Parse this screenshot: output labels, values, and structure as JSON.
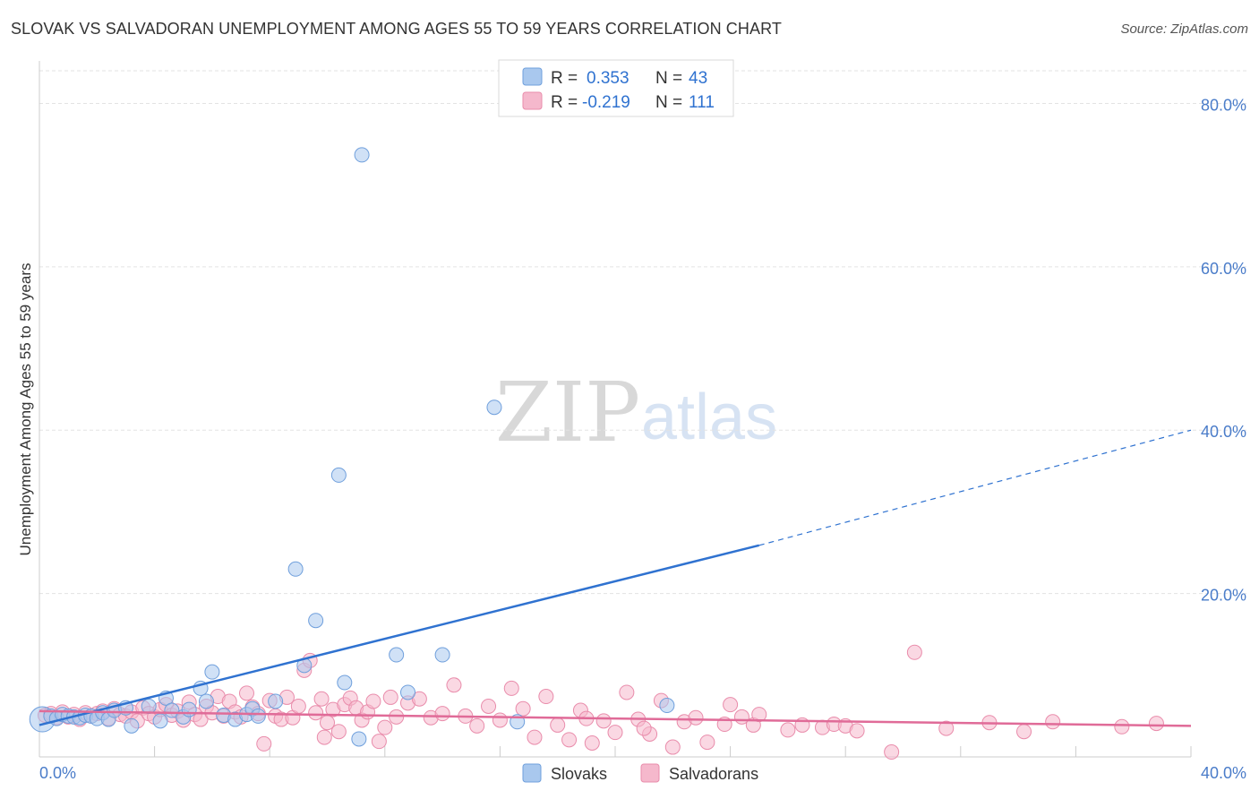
{
  "title": "SLOVAK VS SALVADORAN UNEMPLOYMENT AMONG AGES 55 TO 59 YEARS CORRELATION CHART",
  "source": "Source: ZipAtlas.com",
  "watermark": {
    "zip": "ZIP",
    "atlas": "atlas"
  },
  "colors": {
    "slovak_fill": "#a9c8ee",
    "slovak_stroke": "#6f9fdc",
    "slovak_line": "#2f72d0",
    "salvadoran_fill": "#f5b8cc",
    "salvadoran_stroke": "#e98cab",
    "salvadoran_line": "#e06b98",
    "axis_label": "#4a7cc9",
    "grid": "#e3e3e3"
  },
  "legend": {
    "slovak": {
      "r_label": "R =",
      "r_value": "0.353",
      "n_label": "N =",
      "n_value": "43"
    },
    "salvadoran": {
      "r_label": "R =",
      "r_value": "-0.219",
      "n_label": "N =",
      "n_value": "111"
    }
  },
  "bottom_legend": [
    "Slovaks",
    "Salvadorans"
  ],
  "chart_data": {
    "type": "scatter",
    "title": "SLOVAK VS SALVADORAN UNEMPLOYMENT AMONG AGES 55 TO 59 YEARS CORRELATION CHART",
    "xlabel": "",
    "ylabel": "Unemployment Among Ages 55 to 59 years",
    "xlim": [
      0,
      40
    ],
    "ylim": [
      0,
      84
    ],
    "x_tick_labels": [
      "0.0%",
      "40.0%"
    ],
    "y_ticks": [
      20,
      40,
      60,
      80
    ],
    "y_tick_labels": [
      "20.0%",
      "40.0%",
      "60.0%",
      "80.0%"
    ],
    "grid": true,
    "series": [
      {
        "name": "Slovaks",
        "points": [
          [
            0.1,
            4.6
          ],
          [
            0.4,
            5.0
          ],
          [
            0.6,
            4.7
          ],
          [
            0.8,
            5.2
          ],
          [
            1.0,
            5.0
          ],
          [
            1.2,
            4.9
          ],
          [
            1.4,
            4.8
          ],
          [
            1.6,
            5.1
          ],
          [
            1.8,
            5.0
          ],
          [
            2.0,
            4.7
          ],
          [
            2.2,
            5.4
          ],
          [
            2.4,
            4.6
          ],
          [
            2.6,
            5.7
          ],
          [
            3.0,
            6.0
          ],
          [
            3.2,
            3.8
          ],
          [
            3.8,
            6.2
          ],
          [
            4.2,
            4.4
          ],
          [
            4.4,
            7.2
          ],
          [
            4.6,
            5.7
          ],
          [
            5.0,
            4.9
          ],
          [
            5.2,
            5.8
          ],
          [
            5.6,
            8.4
          ],
          [
            5.8,
            6.8
          ],
          [
            6.0,
            10.4
          ],
          [
            6.4,
            5.1
          ],
          [
            6.8,
            4.6
          ],
          [
            7.2,
            5.2
          ],
          [
            7.4,
            5.9
          ],
          [
            7.6,
            5.0
          ],
          [
            8.2,
            6.8
          ],
          [
            8.9,
            23.0
          ],
          [
            9.2,
            11.2
          ],
          [
            9.6,
            16.7
          ],
          [
            10.4,
            34.5
          ],
          [
            10.6,
            9.1
          ],
          [
            11.1,
            2.2
          ],
          [
            11.2,
            73.7
          ],
          [
            12.4,
            12.5
          ],
          [
            12.8,
            7.9
          ],
          [
            14.0,
            12.5
          ],
          [
            15.8,
            42.8
          ],
          [
            16.6,
            4.3
          ],
          [
            21.8,
            6.3
          ]
        ],
        "trend": {
          "x0": 0,
          "y0": 3.9,
          "x1": 25,
          "y1": 25.9,
          "dashed_to_x": 40,
          "dashed_to_y": 40.0
        }
      },
      {
        "name": "Salvadorans",
        "points": [
          [
            0.2,
            5.1
          ],
          [
            0.4,
            5.3
          ],
          [
            0.6,
            4.8
          ],
          [
            0.8,
            5.5
          ],
          [
            1.0,
            4.9
          ],
          [
            1.2,
            5.2
          ],
          [
            1.4,
            4.6
          ],
          [
            1.6,
            5.4
          ],
          [
            1.8,
            5.0
          ],
          [
            2.0,
            5.3
          ],
          [
            2.2,
            5.6
          ],
          [
            2.4,
            4.7
          ],
          [
            2.6,
            5.9
          ],
          [
            2.8,
            5.2
          ],
          [
            3.0,
            5.0
          ],
          [
            3.2,
            5.5
          ],
          [
            3.4,
            4.4
          ],
          [
            3.6,
            6.0
          ],
          [
            3.8,
            5.3
          ],
          [
            4.0,
            4.9
          ],
          [
            4.2,
            5.8
          ],
          [
            4.4,
            6.4
          ],
          [
            4.6,
            5.1
          ],
          [
            4.8,
            5.6
          ],
          [
            5.0,
            4.5
          ],
          [
            5.2,
            6.7
          ],
          [
            5.4,
            5.2
          ],
          [
            5.6,
            4.6
          ],
          [
            5.8,
            6.2
          ],
          [
            6.0,
            5.4
          ],
          [
            6.2,
            7.4
          ],
          [
            6.4,
            5.0
          ],
          [
            6.6,
            6.8
          ],
          [
            6.8,
            5.5
          ],
          [
            7.0,
            4.9
          ],
          [
            7.2,
            7.8
          ],
          [
            7.4,
            6.1
          ],
          [
            7.6,
            5.3
          ],
          [
            7.8,
            1.6
          ],
          [
            8.0,
            6.9
          ],
          [
            8.2,
            5.0
          ],
          [
            8.4,
            4.6
          ],
          [
            8.6,
            7.3
          ],
          [
            8.8,
            4.8
          ],
          [
            9.0,
            6.2
          ],
          [
            9.2,
            10.6
          ],
          [
            9.4,
            11.8
          ],
          [
            9.6,
            5.4
          ],
          [
            9.8,
            7.1
          ],
          [
            10.0,
            4.2
          ],
          [
            10.2,
            5.8
          ],
          [
            10.4,
            3.1
          ],
          [
            10.6,
            6.4
          ],
          [
            10.8,
            7.2
          ],
          [
            11.0,
            6.0
          ],
          [
            11.2,
            4.5
          ],
          [
            11.4,
            5.5
          ],
          [
            11.6,
            6.8
          ],
          [
            11.8,
            1.9
          ],
          [
            12.0,
            3.6
          ],
          [
            12.2,
            7.3
          ],
          [
            12.4,
            4.9
          ],
          [
            12.8,
            6.6
          ],
          [
            13.2,
            7.1
          ],
          [
            13.6,
            4.8
          ],
          [
            14.0,
            5.3
          ],
          [
            14.4,
            8.8
          ],
          [
            14.8,
            5.0
          ],
          [
            15.2,
            3.8
          ],
          [
            15.6,
            6.2
          ],
          [
            16.0,
            4.5
          ],
          [
            16.4,
            8.4
          ],
          [
            16.8,
            5.9
          ],
          [
            17.2,
            2.4
          ],
          [
            17.6,
            7.4
          ],
          [
            18.0,
            3.9
          ],
          [
            18.4,
            2.1
          ],
          [
            18.8,
            5.7
          ],
          [
            19.2,
            1.7
          ],
          [
            19.6,
            4.4
          ],
          [
            20.0,
            3.0
          ],
          [
            20.4,
            7.9
          ],
          [
            20.8,
            4.6
          ],
          [
            21.2,
            2.8
          ],
          [
            21.6,
            6.9
          ],
          [
            22.0,
            1.2
          ],
          [
            22.4,
            4.3
          ],
          [
            22.8,
            4.8
          ],
          [
            23.2,
            1.8
          ],
          [
            24.0,
            6.4
          ],
          [
            24.4,
            4.9
          ],
          [
            24.8,
            3.9
          ],
          [
            25.0,
            5.2
          ],
          [
            26.0,
            3.3
          ],
          [
            26.5,
            3.9
          ],
          [
            27.2,
            3.6
          ],
          [
            27.6,
            4.0
          ],
          [
            28.0,
            3.8
          ],
          [
            28.4,
            3.2
          ],
          [
            29.6,
            0.6
          ],
          [
            30.4,
            12.8
          ],
          [
            31.5,
            3.5
          ],
          [
            33.0,
            4.2
          ],
          [
            34.2,
            3.1
          ],
          [
            35.2,
            4.3
          ],
          [
            37.6,
            3.7
          ],
          [
            38.8,
            4.1
          ],
          [
            21.0,
            3.5
          ],
          [
            19.0,
            4.7
          ],
          [
            23.8,
            4.0
          ],
          [
            9.9,
            2.4
          ]
        ],
        "trend": {
          "x0": 0,
          "y0": 5.6,
          "x1": 40,
          "y1": 3.8
        }
      }
    ]
  }
}
